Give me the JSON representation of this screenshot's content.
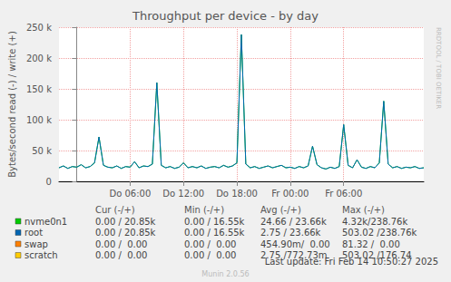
{
  "chart_data": {
    "type": "line",
    "title": "Throughput per device - by day",
    "y_label": "Bytes/second read (-) / write (+)",
    "x": [
      -2,
      -1.5,
      -1,
      -0.5,
      0,
      0.5,
      1,
      1.5,
      2,
      2.5,
      3,
      3.5,
      4,
      4.5,
      5,
      5.5,
      6,
      6.5,
      7,
      7.5,
      8,
      8.5,
      9,
      9.5,
      10,
      10.5,
      11,
      11.5,
      12,
      12.5,
      13,
      13.5,
      14,
      14.5,
      15,
      15.5,
      16,
      16.5,
      17,
      17.5,
      18,
      18.5,
      19,
      19.5,
      20,
      20.5,
      21,
      21.5,
      22,
      22.5,
      23,
      23.5,
      24,
      24.5,
      25,
      25.5,
      26,
      26.5,
      27,
      27.5,
      28,
      28.5,
      29,
      29.5,
      30,
      30.5,
      31,
      31.5,
      32,
      32.5,
      33,
      33.5,
      34,
      34.5,
      35,
      35.5,
      36,
      36.5,
      37,
      37.5,
      38,
      38.5,
      39
    ],
    "series": [
      {
        "name": "nvme0n1",
        "color": "#00cc00",
        "values": [
          22000,
          25000,
          21000,
          24000,
          23000,
          27000,
          22000,
          24000,
          30000,
          72000,
          26000,
          23000,
          22000,
          25000,
          21000,
          24000,
          23000,
          32000,
          22000,
          25000,
          24000,
          28000,
          160000,
          26000,
          22000,
          24000,
          21000,
          23000,
          30000,
          22000,
          24000,
          22000,
          25000,
          21000,
          23000,
          24000,
          22000,
          26000,
          23000,
          25000,
          30000,
          238000,
          28000,
          22000,
          24000,
          21000,
          23000,
          25000,
          22000,
          24000,
          26000,
          22000,
          23000,
          21000,
          24000,
          22000,
          25000,
          57000,
          27000,
          22000,
          20000,
          23000,
          21000,
          24000,
          92000,
          26000,
          22000,
          35000,
          23000,
          21000,
          24000,
          22000,
          30000,
          130000,
          28000,
          22000,
          24000,
          21000,
          23000,
          22000,
          24000,
          21000,
          22000
        ]
      },
      {
        "name": "root",
        "color": "#0066b3",
        "values": [
          22000,
          25000,
          21000,
          24000,
          23000,
          27000,
          22000,
          24000,
          30000,
          72000,
          26000,
          23000,
          22000,
          25000,
          21000,
          24000,
          23000,
          32000,
          22000,
          25000,
          24000,
          28000,
          160000,
          26000,
          22000,
          24000,
          21000,
          23000,
          30000,
          22000,
          24000,
          22000,
          25000,
          21000,
          23000,
          24000,
          22000,
          26000,
          23000,
          25000,
          30000,
          238000,
          28000,
          22000,
          24000,
          21000,
          23000,
          25000,
          22000,
          24000,
          26000,
          22000,
          23000,
          21000,
          24000,
          22000,
          25000,
          57000,
          27000,
          22000,
          20000,
          23000,
          21000,
          24000,
          92000,
          26000,
          22000,
          35000,
          23000,
          21000,
          24000,
          22000,
          30000,
          130000,
          28000,
          22000,
          24000,
          21000,
          23000,
          22000,
          24000,
          21000,
          22000
        ]
      }
    ],
    "xlim": [
      -2,
      39
    ],
    "xticks": [
      {
        "value": 6,
        "label": "Do 06:00"
      },
      {
        "value": 12,
        "label": "Do 12:00"
      },
      {
        "value": 18,
        "label": "Do 18:00"
      },
      {
        "value": 24,
        "label": "Fr 00:00"
      },
      {
        "value": 30,
        "label": "Fr 06:00"
      }
    ],
    "ylim": [
      0,
      250000
    ],
    "yticks": [
      0,
      {
        "value": 50000,
        "label": "50 k"
      },
      {
        "value": 100000,
        "label": "100 k"
      },
      {
        "value": 150000,
        "label": "150 k"
      },
      {
        "value": 200000,
        "label": "200 k"
      },
      {
        "value": 250000,
        "label": "250 k"
      }
    ],
    "grid": true,
    "legend_table": {
      "columns": [
        "Cur (-/+)",
        "Min (-/+)",
        "Avg (-/+)",
        "Max (-/+)"
      ],
      "rows": [
        {
          "name": "nvme0n1",
          "color": "#00cc00",
          "cells": [
            "0.00 / 20.85k",
            "0.00 / 16.55k",
            "24.66 / 23.66k",
            "4.32k/238.76k"
          ]
        },
        {
          "name": "root",
          "color": "#0066b3",
          "cells": [
            "0.00 / 20.85k",
            "0.00 / 16.55k",
            "2.75 / 23.66k",
            "503.02 /238.76k"
          ]
        },
        {
          "name": "swap",
          "color": "#ff8000",
          "cells": [
            "0.00 /  0.00",
            "0.00 /  0.00",
            "454.90m/  0.00",
            "81.32 /  0.00"
          ]
        },
        {
          "name": "scratch",
          "color": "#ffcc00",
          "cells": [
            "0.00 /  0.00",
            "0.00 /  0.00",
            "2.75 /772.73m",
            "503.02 /176.74"
          ]
        }
      ]
    },
    "footer": "Last update: Fri Feb 14 10:50:27 2025",
    "version": "Munin 2.0.56",
    "side_text": "RRDTOOL / TOBI OETIKER"
  }
}
